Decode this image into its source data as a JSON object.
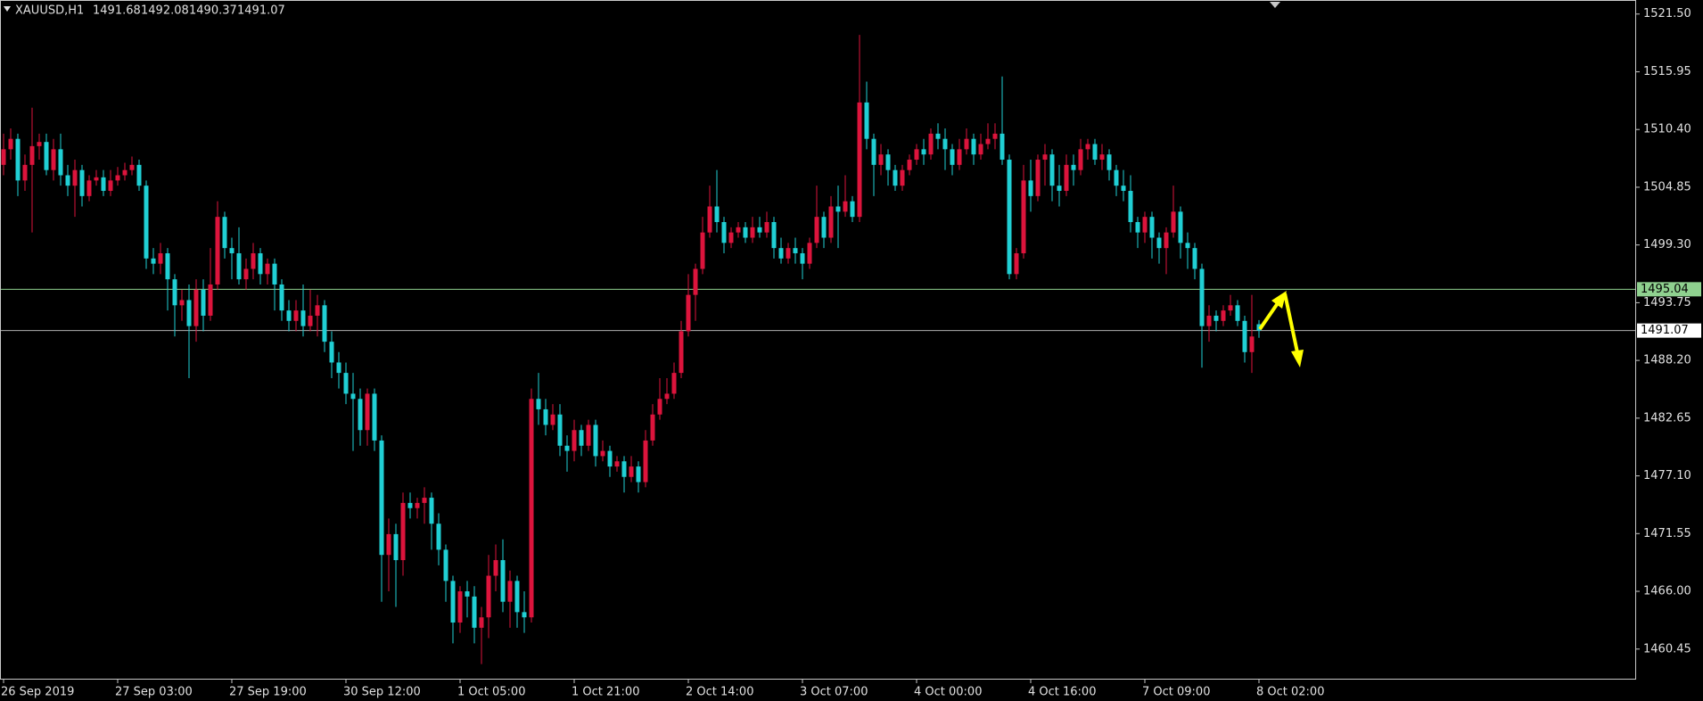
{
  "chart_data": {
    "type": "candlestick",
    "title": "XAUUSD,H1",
    "up_color": "#dc143c",
    "down_color": "#20cfd4",
    "xlim": [
      -0.5,
      228.75
    ],
    "ylim": [
      1457.6,
      1522.85
    ],
    "xticks": [
      {
        "value": 0,
        "label": "26 Sep 2019"
      },
      {
        "value": 16,
        "label": "27 Sep 03:00"
      },
      {
        "value": 32,
        "label": "27 Sep 19:00"
      },
      {
        "value": 48,
        "label": "30 Sep 12:00"
      },
      {
        "value": 64,
        "label": "1 Oct 05:00"
      },
      {
        "value": 80,
        "label": "1 Oct 21:00"
      },
      {
        "value": 96,
        "label": "2 Oct 14:00"
      },
      {
        "value": 112,
        "label": "3 Oct 07:00"
      },
      {
        "value": 128,
        "label": "4 Oct 00:00"
      },
      {
        "value": 144,
        "label": "4 Oct 16:00"
      },
      {
        "value": 160,
        "label": "7 Oct 09:00"
      },
      {
        "value": 176,
        "label": "8 Oct 02:00"
      }
    ],
    "yticks": [
      {
        "value": 1521.5,
        "label": "1521.50"
      },
      1515.95,
      {
        "value": 1510.4,
        "label": "1510.40"
      },
      1504.85,
      {
        "value": 1499.3,
        "label": "1499.30"
      },
      1493.75,
      {
        "value": 1488.2,
        "label": "1488.20"
      },
      1482.65,
      {
        "value": 1477.1,
        "label": "1477.10"
      },
      1471.55,
      {
        "value": 1466,
        "label": "1466.00"
      },
      1460.45
    ],
    "hlines": [
      {
        "value": 1495.04,
        "color": "#8fd18f"
      }
    ],
    "current_line_color": "#b0b0b0",
    "open": [
      1507,
      1508.5,
      1509.5,
      1505.5,
      1507,
      1508.8,
      1509.2,
      1506.5,
      1508.5,
      1506,
      1505,
      1506.5,
      1504,
      1505.5,
      1505.8,
      1504.5,
      1505.5,
      1506,
      1506.5,
      1507,
      1505,
      1498,
      1497.5,
      1498.5,
      1496,
      1493.5,
      1494,
      1491.5,
      1495,
      1492.5,
      1495.5,
      1502,
      1499,
      1498.5,
      1496,
      1497,
      1498.5,
      1496.5,
      1497.5,
      1495.5,
      1493,
      1492,
      1493,
      1491.5,
      1492.5,
      1493.5,
      1490,
      1488,
      1487,
      1485,
      1484.5,
      1481.5,
      1485,
      1480.5,
      1469.5,
      1471.5,
      1469,
      1474.5,
      1474,
      1474.5,
      1475,
      1472.5,
      1470,
      1467,
      1463,
      1466,
      1465.5,
      1462.5,
      1463.5,
      1467.5,
      1469,
      1465,
      1467,
      1464,
      1463.5,
      1484.5,
      1483.5,
      1482,
      1483,
      1480,
      1479.5,
      1481.5,
      1480,
      1482,
      1479,
      1479.5,
      1478,
      1478.5,
      1477,
      1478,
      1476.5,
      1480.5,
      1483,
      1484.5,
      1485,
      1487,
      1491,
      1494.5,
      1497,
      1500.5,
      1503,
      1501.5,
      1499.5,
      1500.5,
      1501,
      1500,
      1501,
      1500.5,
      1501.5,
      1499,
      1498,
      1499,
      1498.5,
      1497.5,
      1499.5,
      1502,
      1500,
      1503,
      1502.5,
      1503.5,
      1502,
      1513,
      1509.5,
      1507,
      1508,
      1506.5,
      1505,
      1506.5,
      1507.5,
      1508.5,
      1508,
      1510,
      1509.5,
      1508.5,
      1507,
      1508.5,
      1509.5,
      1508,
      1509,
      1509.5,
      1510,
      1507.5,
      1496.5,
      1498.5,
      1505.5,
      1504,
      1507.5,
      1508,
      1505,
      1504.5,
      1507,
      1506.5,
      1508.5,
      1509,
      1507.5,
      1508,
      1506.5,
      1505,
      1504.5,
      1501.5,
      1500.5,
      1502,
      1500,
      1499,
      1500.5,
      1502.5,
      1499.5,
      1499,
      1497,
      1491.5,
      1492.5,
      1492,
      1493,
      1493.5,
      1492,
      1489,
      1491.68
    ],
    "high": [
      1510,
      1510.5,
      1510,
      1508,
      1512.5,
      1510,
      1510,
      1509.5,
      1510,
      1507,
      1507.5,
      1507,
      1506,
      1506.5,
      1506.5,
      1506.5,
      1506.8,
      1507.2,
      1507.8,
      1507.5,
      1505.5,
      1499,
      1499.5,
      1499,
      1496.5,
      1495,
      1495.5,
      1496,
      1496,
      1499,
      1503.5,
      1502.5,
      1500,
      1501,
      1498,
      1499.5,
      1499,
      1498,
      1498,
      1496,
      1494,
      1494,
      1495.5,
      1495,
      1494.5,
      1494,
      1491,
      1489,
      1488,
      1487,
      1485.5,
      1485.5,
      1485.5,
      1481,
      1473,
      1472.5,
      1475.5,
      1475.5,
      1475,
      1476,
      1475.5,
      1473.5,
      1470.5,
      1467.5,
      1466.5,
      1467,
      1466.5,
      1464.5,
      1469.5,
      1470.5,
      1471,
      1468,
      1467.5,
      1466,
      1485.5,
      1487,
      1484.5,
      1484,
      1484,
      1481,
      1482.5,
      1482,
      1482.5,
      1482.5,
      1480.5,
      1480,
      1479,
      1479,
      1479,
      1478.5,
      1481.5,
      1484,
      1486.5,
      1486.5,
      1488,
      1492,
      1496.5,
      1497.5,
      1502,
      1505,
      1506.5,
      1502,
      1501,
      1501.5,
      1501.5,
      1502,
      1502,
      1502.5,
      1502,
      1500,
      1499.5,
      1500,
      1499,
      1500,
      1505,
      1502.5,
      1504,
      1505,
      1506,
      1504,
      1519.5,
      1515,
      1510,
      1509,
      1508.5,
      1507,
      1507,
      1508,
      1509,
      1509.5,
      1510.5,
      1511,
      1510.5,
      1509,
      1509.5,
      1510.5,
      1510,
      1510,
      1511,
      1511,
      1515.5,
      1508,
      1499,
      1507,
      1507.5,
      1508,
      1509,
      1508.5,
      1507,
      1508,
      1508,
      1509.5,
      1509.5,
      1509.5,
      1509,
      1508.5,
      1507,
      1506.5,
      1506,
      1502,
      1502.5,
      1502.5,
      1500.5,
      1501,
      1505,
      1503,
      1500.5,
      1499.5,
      1497.5,
      1493.5,
      1493,
      1493.5,
      1494.5,
      1494,
      1492.5,
      1494.5,
      1492.08
    ],
    "low": [
      1506,
      1507.5,
      1504,
      1504.5,
      1500.5,
      1507.5,
      1506,
      1505.5,
      1505,
      1504,
      1502,
      1503,
      1503.5,
      1505,
      1504,
      1504,
      1505,
      1505.5,
      1506,
      1504.5,
      1497,
      1496.5,
      1496.5,
      1493,
      1490.5,
      1492,
      1486.5,
      1490,
      1491,
      1492,
      1495,
      1498,
      1496,
      1495.5,
      1495,
      1496,
      1495.5,
      1495.5,
      1493,
      1492,
      1491,
      1491,
      1490.5,
      1491,
      1490.5,
      1489,
      1486.5,
      1485.5,
      1484,
      1479.5,
      1480,
      1480,
      1479.5,
      1465,
      1466,
      1464.5,
      1467.5,
      1473,
      1473,
      1472.5,
      1470,
      1468.5,
      1465,
      1461,
      1462,
      1463.5,
      1461,
      1459,
      1461.5,
      1466,
      1464,
      1462.5,
      1462.5,
      1462,
      1463,
      1482,
      1481,
      1481.5,
      1479,
      1477.5,
      1478.5,
      1479,
      1479.5,
      1478,
      1478.5,
      1477,
      1477.5,
      1475.5,
      1476.5,
      1475.5,
      1476,
      1480,
      1482.5,
      1484,
      1484.5,
      1486.5,
      1490.5,
      1492,
      1496.5,
      1500,
      1500.5,
      1498.5,
      1499,
      1500,
      1499.5,
      1499.5,
      1500,
      1500,
      1498,
      1497.5,
      1497.5,
      1497.5,
      1496,
      1497,
      1499,
      1499,
      1499.5,
      1499,
      1502,
      1501.5,
      1501.5,
      1508.5,
      1504,
      1506,
      1505,
      1504.5,
      1504.5,
      1506,
      1507,
      1507,
      1507.5,
      1508.5,
      1506.5,
      1506,
      1506.5,
      1508,
      1507,
      1507.5,
      1508.5,
      1508.5,
      1507,
      1496,
      1496,
      1498,
      1502.5,
      1503.5,
      1505,
      1503.5,
      1503,
      1504,
      1505,
      1506,
      1507.5,
      1507,
      1506.5,
      1505.5,
      1504,
      1503.5,
      1500.5,
      1499,
      1499.5,
      1498,
      1497.5,
      1496.5,
      1500,
      1498,
      1497,
      1496,
      1487.5,
      1490,
      1491,
      1491.5,
      1492.5,
      1491.5,
      1488,
      1487,
      1490.37
    ],
    "close": [
      1508.5,
      1509.5,
      1505.5,
      1507,
      1508.8,
      1509.2,
      1506.5,
      1508.5,
      1506,
      1505,
      1506.5,
      1504,
      1505.5,
      1505.8,
      1504.5,
      1505.5,
      1506,
      1506.5,
      1507,
      1505,
      1498,
      1497.5,
      1498.5,
      1496,
      1493.5,
      1494,
      1491.5,
      1495,
      1492.5,
      1495.5,
      1502,
      1499,
      1498.5,
      1496,
      1497,
      1498.5,
      1496.5,
      1497.5,
      1495.5,
      1493,
      1492,
      1493,
      1491.5,
      1492.5,
      1493.5,
      1490,
      1488,
      1487,
      1485,
      1484.5,
      1481.5,
      1485,
      1480.5,
      1469.5,
      1471.5,
      1469,
      1474.5,
      1474,
      1474.5,
      1475,
      1472.5,
      1470,
      1467,
      1463,
      1466,
      1465.5,
      1462.5,
      1463.5,
      1467.5,
      1469,
      1465,
      1467,
      1464,
      1463.5,
      1484.5,
      1483.5,
      1482,
      1483,
      1480,
      1479.5,
      1481.5,
      1480,
      1482,
      1479,
      1479.5,
      1478,
      1478.5,
      1477,
      1478,
      1476.5,
      1480.5,
      1483,
      1484.5,
      1485,
      1487,
      1491,
      1494.5,
      1497,
      1500.5,
      1503,
      1501.5,
      1499.5,
      1500.5,
      1501,
      1500,
      1501,
      1500.5,
      1501.5,
      1499,
      1498,
      1499,
      1498.5,
      1497.5,
      1499.5,
      1502,
      1500,
      1503,
      1502.5,
      1503.5,
      1502,
      1513,
      1509.5,
      1507,
      1508,
      1506.5,
      1505,
      1506.5,
      1507.5,
      1508.5,
      1508,
      1510,
      1509.5,
      1508.5,
      1507,
      1508.5,
      1509.5,
      1508,
      1509,
      1509.5,
      1510,
      1507.5,
      1496.5,
      1498.5,
      1505.5,
      1504,
      1507.5,
      1508,
      1505,
      1504.5,
      1507,
      1506.5,
      1508.5,
      1509,
      1507.5,
      1508,
      1506.5,
      1505,
      1504.5,
      1501.5,
      1500.5,
      1502,
      1500,
      1499,
      1500.5,
      1502.5,
      1499.5,
      1499,
      1497,
      1491.5,
      1492.5,
      1492,
      1493,
      1493.5,
      1492,
      1489,
      1490.5,
      1491.07
    ]
  }
}
